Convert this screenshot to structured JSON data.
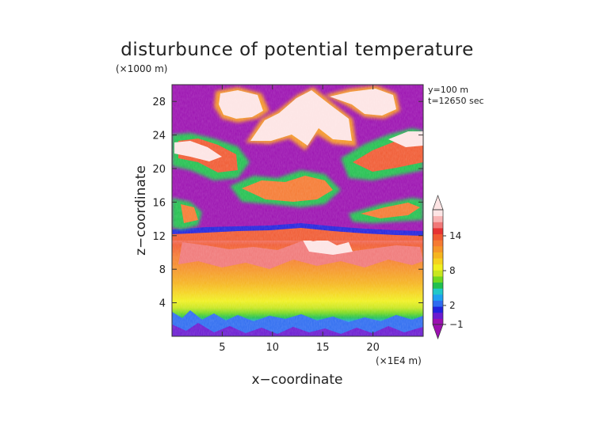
{
  "chart_data": {
    "type": "heatmap",
    "title": "disturbunce of potential temperature",
    "z_unit": "(×1000 m)",
    "x_unit": "(×1E4 m)",
    "xlabel": "x−coordinate",
    "ylabel": "z−coordinate",
    "annotations": [
      "y=100 m",
      "t=12650 sec"
    ],
    "xlim": [
      0,
      25
    ],
    "ylim": [
      0,
      30
    ],
    "x_ticks": [
      "5",
      "10",
      "15",
      "20"
    ],
    "x_tick_values": [
      5,
      10,
      15,
      20
    ],
    "y_ticks": [
      "4",
      "8",
      "12",
      "16",
      "20",
      "24",
      "28"
    ],
    "y_tick_values": [
      4,
      8,
      12,
      16,
      20,
      24,
      28
    ],
    "colorbar": {
      "labeled_levels": [
        "14",
        "8",
        "2",
        "−1"
      ],
      "labeled_values": [
        14,
        8,
        2,
        -1
      ],
      "colors": [
        "#9b10b0",
        "#6a1bd0",
        "#2222dd",
        "#2e6cf0",
        "#1ea0f0",
        "#20c8c8",
        "#20c050",
        "#70d820",
        "#c8e61e",
        "#f0f01e",
        "#f5d21e",
        "#f5b41e",
        "#f59628",
        "#f57a32",
        "#f05a32",
        "#e63232",
        "#f07878",
        "#f8b4b4",
        "#fde4e4"
      ]
    }
  }
}
